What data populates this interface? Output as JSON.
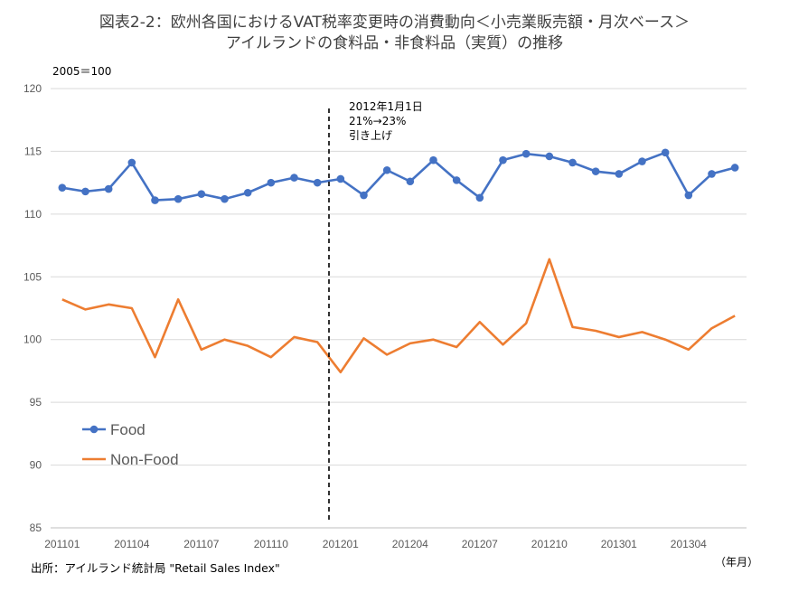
{
  "chart_data": {
    "type": "line",
    "title_lines": [
      "図表2-2：欧州各国におけるVAT税率変更時の消費動向＜小売業販売額・月次ベース＞",
      "アイルランドの食料品・非食料品（実質）の推移"
    ],
    "ylabel": "2005＝100",
    "xlabel": "（年月）",
    "ylim": [
      85,
      120
    ],
    "yticks": [
      85,
      90,
      95,
      100,
      105,
      110,
      115,
      120
    ],
    "x": [
      "201101",
      "201102",
      "201103",
      "201104",
      "201105",
      "201106",
      "201107",
      "201108",
      "201109",
      "201110",
      "201111",
      "201112",
      "201201",
      "201202",
      "201203",
      "201204",
      "201205",
      "201206",
      "201207",
      "201208",
      "201209",
      "201210",
      "201211",
      "201212",
      "201301",
      "201302",
      "201303",
      "201304",
      "201305",
      "201306"
    ],
    "xtick_labels": [
      "201101",
      "201104",
      "201107",
      "201110",
      "201201",
      "201204",
      "201207",
      "201210",
      "201301",
      "201304"
    ],
    "series": [
      {
        "name": "Food",
        "color": "#4472C4",
        "marker": "circle",
        "values": [
          112.1,
          111.8,
          112.0,
          114.1,
          111.1,
          111.2,
          111.6,
          111.2,
          111.7,
          112.5,
          112.9,
          112.5,
          112.8,
          111.5,
          113.5,
          112.6,
          114.3,
          112.7,
          111.3,
          114.3,
          114.8,
          114.6,
          114.1,
          113.4,
          113.2,
          114.2,
          114.9,
          111.5,
          113.2,
          113.7
        ]
      },
      {
        "name": "Non-Food",
        "color": "#ED7D31",
        "marker": "none",
        "values": [
          103.2,
          102.4,
          102.8,
          102.5,
          98.6,
          103.2,
          99.2,
          100.0,
          99.5,
          98.6,
          100.2,
          99.8,
          97.4,
          100.1,
          98.8,
          99.7,
          100.0,
          99.4,
          101.4,
          99.6,
          101.3,
          106.4,
          101.0,
          100.7,
          100.2,
          100.6,
          100.0,
          99.2,
          100.9,
          101.9
        ]
      }
    ],
    "annotation": {
      "at_x": "201201",
      "lines": [
        "2012年1月1日",
        "21%→23%",
        "引き上げ"
      ]
    },
    "legend_position": "bottom-left",
    "grid": "horizontal",
    "source": "出所：アイルランド統計局 \"Retail Sales Index\""
  }
}
